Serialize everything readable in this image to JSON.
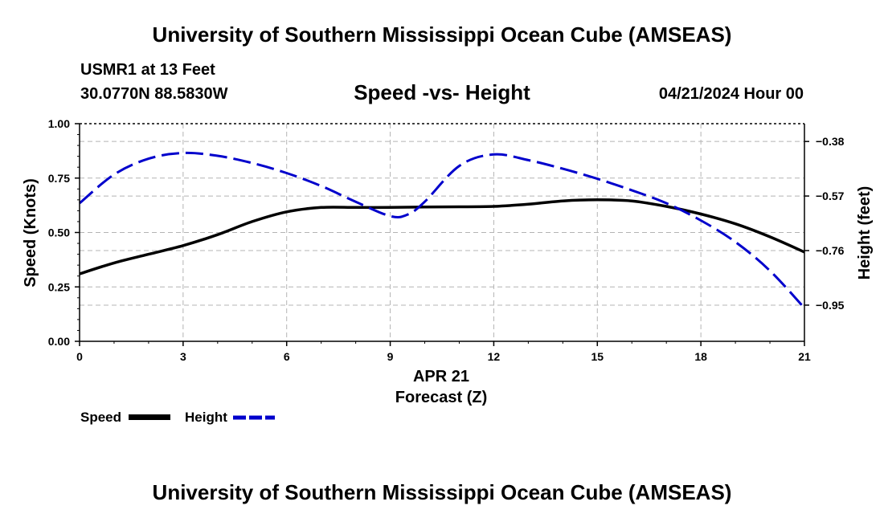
{
  "chart_data": {
    "type": "line",
    "title": "University of Southern Mississippi Ocean Cube (AMSEAS)",
    "subtitle": "Speed -vs- Height",
    "station": "USMR1 at 13 Feet",
    "location": "30.0770N  88.5830W",
    "datetime": "04/21/2024 Hour 00",
    "date_label": "APR 21",
    "xlabel": "Forecast (Z)",
    "ylabel_left": "Speed (Knots)",
    "ylabel_right": "Height (feet)",
    "x_ticks": [
      "0",
      "3",
      "6",
      "9",
      "12",
      "15",
      "18",
      "21"
    ],
    "y_left_ticks": [
      "0.00",
      "0.25",
      "0.50",
      "0.75",
      "1.00"
    ],
    "y_right_ticks": [
      "−0.38",
      "−0.57",
      "−0.76",
      "−0.95"
    ],
    "xlim": [
      0,
      21
    ],
    "ylim_left": [
      0,
      1
    ],
    "ylim_right": [
      -1.076,
      -0.318
    ],
    "series": [
      {
        "name": "Speed",
        "axis": "left",
        "color": "#000000",
        "style": "solid",
        "x": [
          0,
          1,
          2,
          3,
          4,
          5,
          6,
          7,
          8,
          9,
          10,
          11,
          12,
          13,
          14,
          15,
          16,
          17,
          18,
          19,
          20,
          21
        ],
        "values": [
          0.31,
          0.36,
          0.4,
          0.44,
          0.49,
          0.55,
          0.595,
          0.615,
          0.615,
          0.615,
          0.617,
          0.618,
          0.62,
          0.63,
          0.645,
          0.65,
          0.645,
          0.62,
          0.585,
          0.54,
          0.48,
          0.41
        ]
      },
      {
        "name": "Height",
        "axis": "right",
        "color": "#0000cc",
        "style": "dashed",
        "x": [
          0,
          1,
          2,
          3,
          4,
          5,
          6,
          7,
          8,
          9,
          9.5,
          10,
          11,
          12,
          13,
          14,
          15,
          16,
          17,
          18,
          19,
          20,
          21
        ],
        "values": [
          -0.595,
          -0.495,
          -0.44,
          -0.42,
          -0.43,
          -0.455,
          -0.49,
          -0.535,
          -0.59,
          -0.64,
          -0.635,
          -0.59,
          -0.465,
          -0.425,
          -0.445,
          -0.475,
          -0.51,
          -0.55,
          -0.595,
          -0.655,
          -0.73,
          -0.83,
          -0.96
        ]
      }
    ]
  },
  "footer": {
    "title": "University of Southern Mississippi Ocean Cube (AMSEAS)"
  },
  "legend": {
    "speed_label": "Speed",
    "height_label": "Height"
  },
  "colors": {
    "speed": "#000000",
    "height": "#0000cc",
    "grid": "#b4b4b4"
  }
}
